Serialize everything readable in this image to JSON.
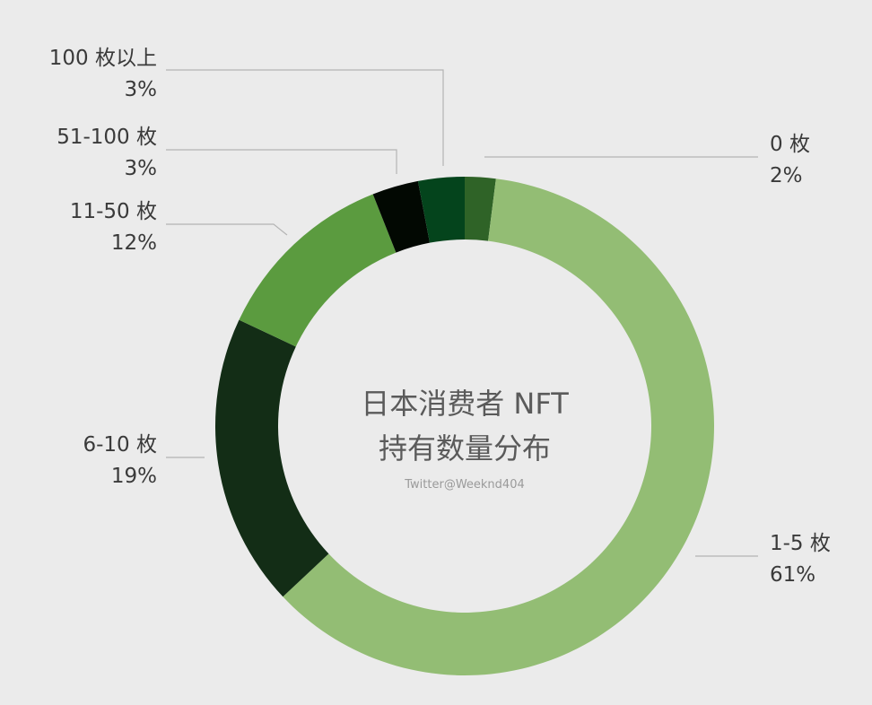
{
  "chart_data": {
    "type": "pie",
    "variant": "donut",
    "title_lines": [
      "日本消费者 NFT",
      "持有数量分布"
    ],
    "credit": "Twitter@Weeknd404",
    "legend": "none",
    "slices": [
      {
        "label": "0 枚",
        "value": 2,
        "value_label": "2%",
        "color": "#2f6327"
      },
      {
        "label": "1-5 枚",
        "value": 61,
        "value_label": "61%",
        "color": "#93bd74"
      },
      {
        "label": "6-10 枚",
        "value": 19,
        "value_label": "19%",
        "color": "#132d16"
      },
      {
        "label": "11-50 枚",
        "value": 12,
        "value_label": "12%",
        "color": "#5b9b3f"
      },
      {
        "label": "51-100 枚",
        "value": 3,
        "value_label": "3%",
        "color": "#020802"
      },
      {
        "label": "100 枚以上",
        "value": 3,
        "value_label": "3%",
        "color": "#04441c"
      }
    ]
  }
}
